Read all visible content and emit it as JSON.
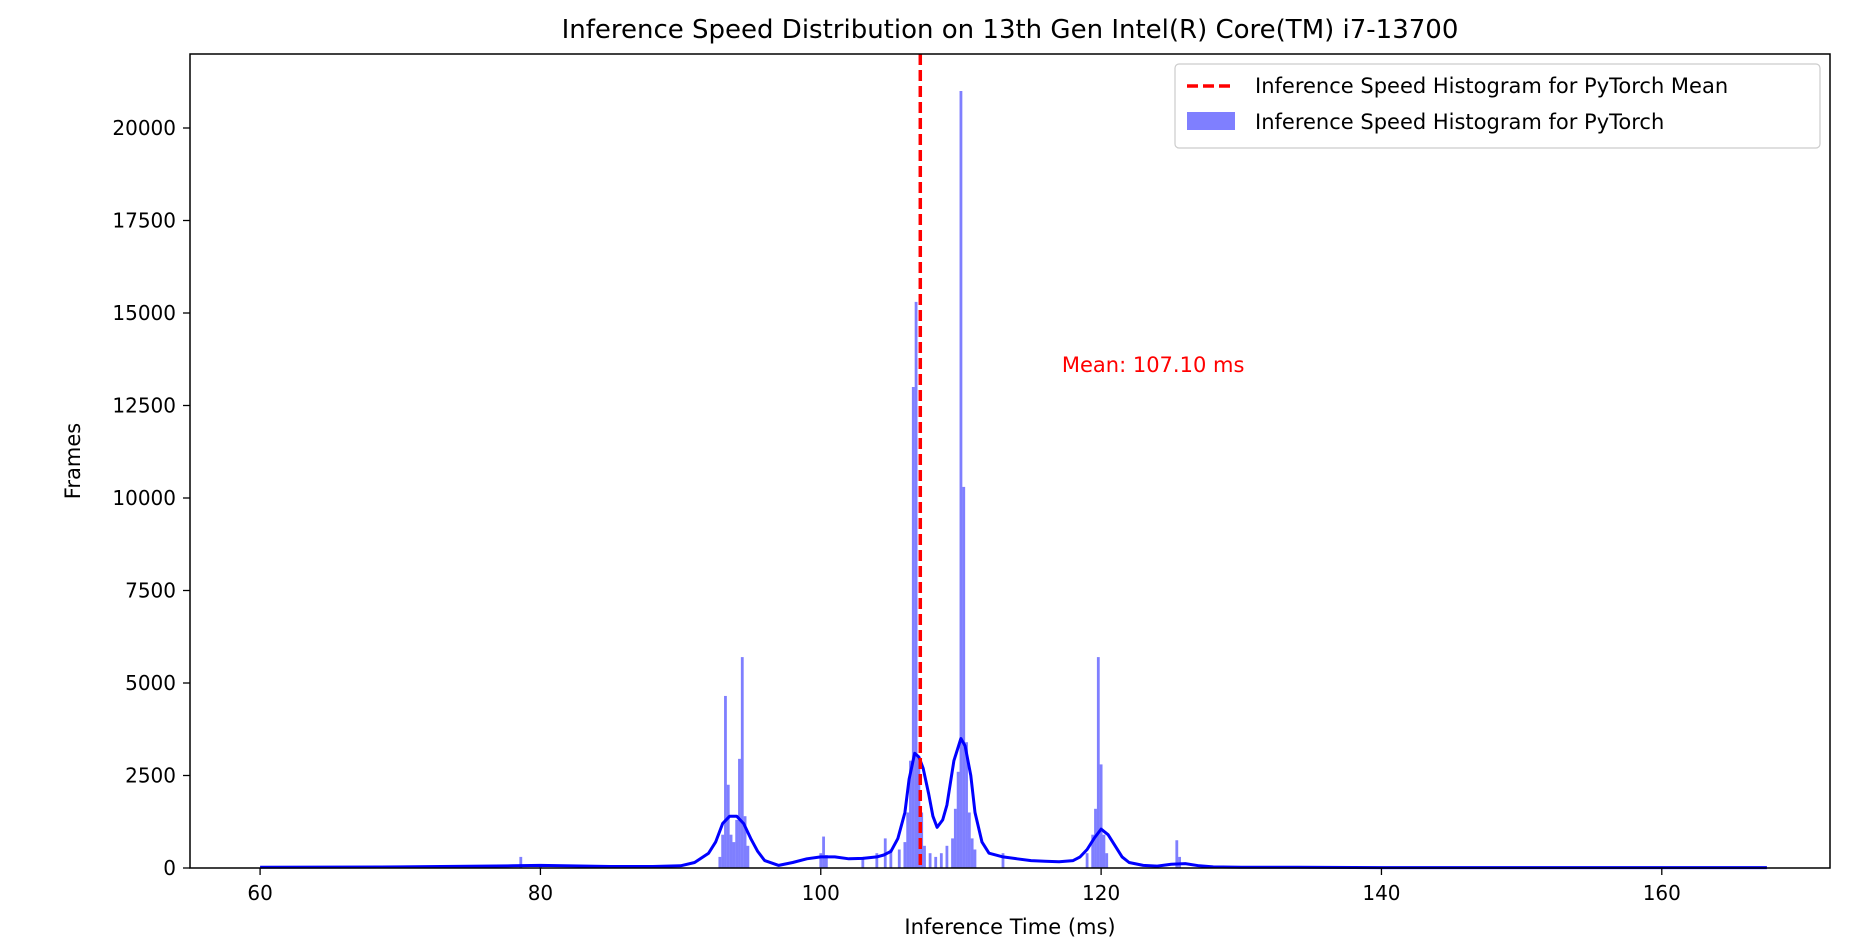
{
  "chart_data": {
    "type": "histogram",
    "title": "Inference Speed Distribution on 13th Gen Intel(R) Core(TM) i7-13700",
    "xlabel": "Inference Time (ms)",
    "ylabel": "Frames",
    "xlim": [
      55,
      172
    ],
    "ylim": [
      0,
      22000
    ],
    "x_ticks": [
      60,
      80,
      100,
      120,
      140,
      160
    ],
    "y_ticks": [
      0,
      2500,
      5000,
      7500,
      10000,
      12500,
      15000,
      17500,
      20000
    ],
    "grid": false,
    "legend_position": "top-right",
    "legend": [
      {
        "label": "Inference Speed Histogram for PyTorch Mean",
        "style": "dashed-line",
        "color": "#ff0000"
      },
      {
        "label": "Inference Speed Histogram for PyTorch",
        "style": "patch",
        "color": "#0000ff"
      }
    ],
    "mean": {
      "value": 107.1,
      "color": "#ff0000"
    },
    "annotation": {
      "text": "Mean: 107.10 ms",
      "x": 117.2,
      "y": 13400,
      "color": "#ff0000"
    },
    "histogram": {
      "color": "#0000ff",
      "alpha": 0.5,
      "bin_width": 0.2,
      "bars": [
        {
          "x": 78.6,
          "y": 300
        },
        {
          "x": 80.0,
          "y": 80
        },
        {
          "x": 92.8,
          "y": 300
        },
        {
          "x": 93.0,
          "y": 900
        },
        {
          "x": 93.2,
          "y": 4650
        },
        {
          "x": 93.4,
          "y": 2250
        },
        {
          "x": 93.6,
          "y": 900
        },
        {
          "x": 93.8,
          "y": 700
        },
        {
          "x": 94.0,
          "y": 1300
        },
        {
          "x": 94.2,
          "y": 2950
        },
        {
          "x": 94.4,
          "y": 5700
        },
        {
          "x": 94.6,
          "y": 1400
        },
        {
          "x": 94.8,
          "y": 600
        },
        {
          "x": 100.0,
          "y": 400
        },
        {
          "x": 100.2,
          "y": 850
        },
        {
          "x": 100.4,
          "y": 350
        },
        {
          "x": 103.0,
          "y": 300
        },
        {
          "x": 104.0,
          "y": 400
        },
        {
          "x": 104.6,
          "y": 800
        },
        {
          "x": 105.0,
          "y": 500
        },
        {
          "x": 105.6,
          "y": 500
        },
        {
          "x": 106.0,
          "y": 700
        },
        {
          "x": 106.2,
          "y": 1500
        },
        {
          "x": 106.4,
          "y": 2900
        },
        {
          "x": 106.6,
          "y": 13000
        },
        {
          "x": 106.8,
          "y": 15300
        },
        {
          "x": 107.0,
          "y": 3000
        },
        {
          "x": 107.2,
          "y": 1500
        },
        {
          "x": 107.4,
          "y": 600
        },
        {
          "x": 107.8,
          "y": 400
        },
        {
          "x": 108.2,
          "y": 300
        },
        {
          "x": 108.6,
          "y": 400
        },
        {
          "x": 109.0,
          "y": 600
        },
        {
          "x": 109.4,
          "y": 800
        },
        {
          "x": 109.6,
          "y": 1600
        },
        {
          "x": 109.8,
          "y": 2600
        },
        {
          "x": 110.0,
          "y": 21000
        },
        {
          "x": 110.2,
          "y": 10300
        },
        {
          "x": 110.4,
          "y": 3400
        },
        {
          "x": 110.6,
          "y": 1500
        },
        {
          "x": 110.8,
          "y": 800
        },
        {
          "x": 111.0,
          "y": 500
        },
        {
          "x": 113.0,
          "y": 400
        },
        {
          "x": 119.0,
          "y": 400
        },
        {
          "x": 119.4,
          "y": 900
        },
        {
          "x": 119.6,
          "y": 1600
        },
        {
          "x": 119.8,
          "y": 5700
        },
        {
          "x": 120.0,
          "y": 2800
        },
        {
          "x": 120.2,
          "y": 900
        },
        {
          "x": 120.4,
          "y": 400
        },
        {
          "x": 125.4,
          "y": 750
        },
        {
          "x": 125.6,
          "y": 300
        }
      ]
    },
    "kde": {
      "color": "#0000ff",
      "x": [
        60,
        70,
        78,
        80,
        85,
        88,
        90,
        91,
        92,
        92.5,
        93,
        93.5,
        94,
        94.5,
        95,
        95.5,
        96,
        97,
        98,
        99,
        100,
        101,
        102,
        103,
        104,
        104.5,
        105,
        105.5,
        106,
        106.3,
        106.7,
        107,
        107.3,
        107.7,
        108,
        108.3,
        108.7,
        109,
        109.5,
        110,
        110.3,
        110.7,
        111,
        111.5,
        112,
        113,
        114,
        115,
        116,
        117,
        118,
        118.5,
        119,
        119.5,
        120,
        120.5,
        121,
        121.5,
        122,
        123,
        124,
        125,
        126,
        127,
        128,
        130,
        134,
        140,
        150,
        160,
        167.5
      ],
      "y": [
        20,
        30,
        60,
        70,
        40,
        40,
        60,
        150,
        400,
        700,
        1200,
        1400,
        1400,
        1200,
        800,
        450,
        200,
        70,
        150,
        250,
        300,
        300,
        250,
        260,
        300,
        350,
        450,
        800,
        1500,
        2400,
        3100,
        3000,
        2700,
        2000,
        1400,
        1100,
        1300,
        1700,
        2900,
        3500,
        3300,
        2500,
        1500,
        700,
        400,
        300,
        250,
        200,
        180,
        170,
        200,
        300,
        500,
        800,
        1050,
        900,
        600,
        300,
        150,
        70,
        50,
        100,
        120,
        60,
        30,
        20,
        20,
        10,
        10,
        10,
        10
      ]
    }
  }
}
